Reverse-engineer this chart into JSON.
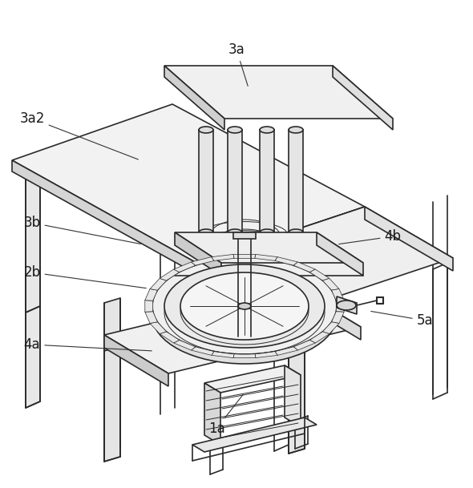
{
  "lc": "#2a2a2a",
  "lw": 1.2,
  "tlw": 0.7,
  "fc_top": "#f5f5f5",
  "fc_side_l": "#d8d8d8",
  "fc_side_r": "#e8e8e8",
  "fc_white": "#ffffff",
  "labels": [
    [
      "3a",
      295,
      62,
      310,
      110
    ],
    [
      "3a2",
      40,
      148,
      175,
      200
    ],
    [
      "3b",
      40,
      278,
      178,
      305
    ],
    [
      "2b",
      40,
      340,
      185,
      360
    ],
    [
      "4b",
      490,
      295,
      420,
      305
    ],
    [
      "4a",
      40,
      430,
      192,
      438
    ],
    [
      "5a",
      530,
      400,
      460,
      388
    ],
    [
      "1a",
      270,
      535,
      305,
      490
    ]
  ],
  "label_fs": 12
}
